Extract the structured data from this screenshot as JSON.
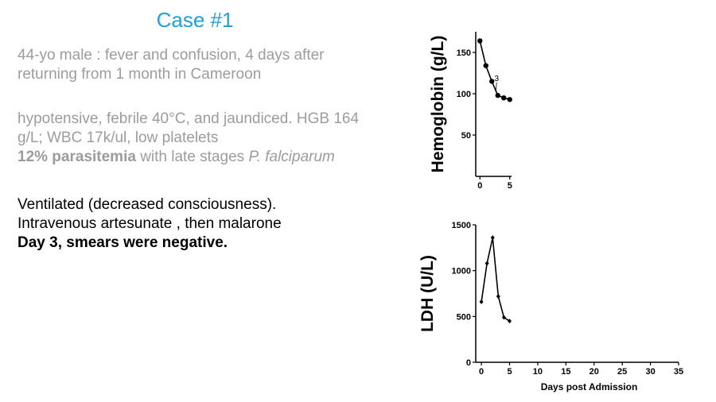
{
  "slide": {
    "title": "Case #1",
    "history": {
      "line1": "44-yo male : fever and confusion, 4 days after",
      "line2": "returning from 1 month in Cameroon"
    },
    "exam": {
      "line1": "hypotensive, febrile 40°C, and jaundiced. HGB 164",
      "line2": "g/L; WBC 17k/ul, low platelets",
      "para_bold": "12% parasitemia",
      "para_mid": " with late stages ",
      "para_ital": "P. falciparum"
    },
    "course": {
      "line1": "Ventilated (decreased consciousness).",
      "line2": "Intravenous artesunate , then malarone",
      "line3": "Day 3, smears were negative."
    }
  },
  "colors": {
    "title": "#1aa3e0",
    "gray_text": "#9c9c9c",
    "ink": "#000000"
  },
  "chart_data": [
    {
      "type": "line",
      "ylabel": "Hemoglobin (g/L)",
      "xlabel": "",
      "x_ticks": [
        "0",
        "5"
      ],
      "y_ticks": [
        "50",
        "100",
        "150"
      ],
      "xlim": [
        -0.7,
        5.3
      ],
      "ylim": [
        0,
        175
      ],
      "annotation": {
        "text": "3",
        "x": 2.8,
        "y": 106
      },
      "series": [
        {
          "x": [
            0,
            1,
            2,
            3,
            4,
            5
          ],
          "y": [
            164,
            134,
            115,
            98,
            95,
            93
          ]
        }
      ]
    },
    {
      "type": "line",
      "ylabel": "LDH (U/L)",
      "xlabel": "Days post Admission",
      "x_ticks": [
        "0",
        "5",
        "10",
        "15",
        "20",
        "25",
        "30",
        "35"
      ],
      "y_ticks": [
        "0",
        "500",
        "1000",
        "1500"
      ],
      "xlim": [
        -1,
        35
      ],
      "ylim": [
        0,
        1500
      ],
      "series": [
        {
          "x": [
            0,
            1,
            2,
            3,
            4,
            5
          ],
          "y": [
            660,
            1080,
            1360,
            720,
            490,
            450
          ]
        }
      ]
    }
  ]
}
